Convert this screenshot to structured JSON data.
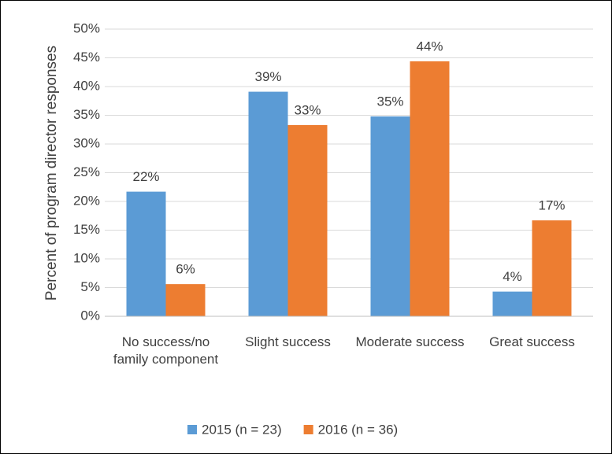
{
  "chart_data": {
    "type": "bar",
    "y_label": "Percent of program director responses",
    "categories": [
      "No success/no family component",
      "Slight success",
      "Moderate success",
      "Great success"
    ],
    "series": [
      {
        "name": "2015 (n = 23)",
        "color": "#5b9bd5",
        "values": [
          21.7,
          39.1,
          34.8,
          4.3
        ],
        "value_labels": [
          "22%",
          "39%",
          "35%",
          "4%"
        ]
      },
      {
        "name": "2016 (n = 36)",
        "color": "#ed7d31",
        "values": [
          5.6,
          33.3,
          44.4,
          16.7
        ],
        "value_labels": [
          "6%",
          "33%",
          "44%",
          "17%"
        ]
      }
    ],
    "ylim": [
      0,
      50
    ],
    "yticks": [
      {
        "value": 0,
        "label": "0%"
      },
      {
        "value": 5,
        "label": "5%"
      },
      {
        "value": 10,
        "label": "10%"
      },
      {
        "value": 15,
        "label": "15%"
      },
      {
        "value": 20,
        "label": "20%"
      },
      {
        "value": 25,
        "label": "25%"
      },
      {
        "value": 30,
        "label": "30%"
      },
      {
        "value": 35,
        "label": "35%"
      },
      {
        "value": 40,
        "label": "40%"
      },
      {
        "value": 45,
        "label": "45%"
      },
      {
        "value": 50,
        "label": "50%"
      }
    ],
    "grid": true,
    "legend": "bottom"
  }
}
